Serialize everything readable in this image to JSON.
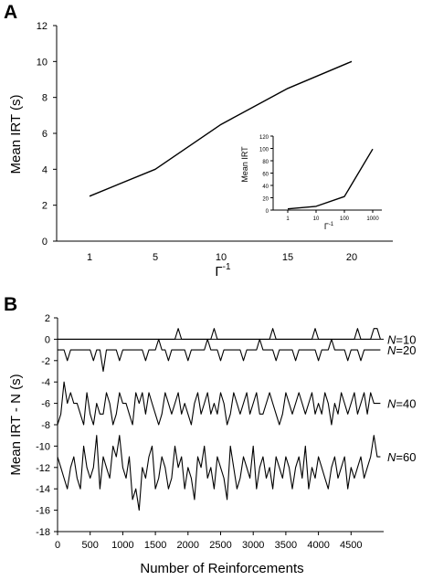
{
  "chart_data": [
    {
      "panel": "A",
      "type": "line",
      "categories": [
        "1",
        "5",
        "10",
        "15",
        "20"
      ],
      "values": [
        2.5,
        4.0,
        6.5,
        8.5,
        10.0
      ],
      "xlabel": "Γ -1",
      "ylabel": "Mean IRT (s)",
      "ylim": [
        0,
        12
      ],
      "yticks": [
        0,
        2,
        4,
        6,
        8,
        10,
        12
      ],
      "grid": false,
      "inset": {
        "type": "line",
        "x_scale": "log",
        "x": [
          1,
          10,
          100,
          1000
        ],
        "values": [
          2,
          6,
          22,
          99
        ],
        "xticks": [
          "1",
          "10",
          "100",
          "1000"
        ],
        "xlabel": "Γ -1",
        "ylabel": "Mean IRT",
        "ylim": [
          0,
          120
        ],
        "yticks": [
          0,
          20,
          40,
          60,
          80,
          100,
          120
        ]
      }
    },
    {
      "panel": "B",
      "type": "line",
      "xlabel": "Number of Reinforcements",
      "ylabel": "Mean IRT - N (s)",
      "xlim": [
        0,
        5000
      ],
      "xticks": [
        0,
        500,
        1000,
        1500,
        2000,
        2500,
        3000,
        3500,
        4000,
        4500
      ],
      "ylim": [
        -18,
        2
      ],
      "yticks": [
        2,
        0,
        -2,
        -4,
        -6,
        -8,
        -10,
        -12,
        -14,
        -16,
        -18
      ],
      "reference_line": 0,
      "grid": false,
      "x_step": 50,
      "series": [
        {
          "name": "N=10",
          "label_prefix": "N",
          "label_value": "=10",
          "values": [
            0,
            0,
            0,
            0,
            0,
            0,
            0,
            0,
            0,
            0,
            0,
            0,
            0,
            0,
            0,
            0,
            0,
            0,
            0,
            0,
            0,
            0,
            0,
            0,
            0,
            0,
            0,
            0,
            0,
            0,
            0,
            0,
            0,
            0,
            0,
            0,
            0,
            1,
            0,
            0,
            0,
            0,
            0,
            0,
            0,
            0,
            0,
            0,
            1,
            0,
            0,
            0,
            0,
            0,
            0,
            0,
            0,
            0,
            0,
            0,
            0,
            0,
            0,
            0,
            0,
            0,
            1,
            0,
            0,
            0,
            0,
            0,
            0,
            0,
            0,
            0,
            0,
            0,
            0,
            1,
            0,
            0,
            0,
            0,
            0,
            0,
            0,
            0,
            0,
            0,
            0,
            0,
            1,
            0,
            0,
            0,
            0,
            1,
            1,
            0
          ]
        },
        {
          "name": "N=20",
          "label_prefix": "N",
          "label_value": "=20",
          "values": [
            -1,
            -1,
            -1,
            -2,
            -1,
            -1,
            -1,
            -1,
            -1,
            -1,
            -1,
            -2,
            -1,
            -1,
            -3,
            -1,
            -1,
            -1,
            -1,
            -2,
            -1,
            -1,
            -1,
            -1,
            -1,
            -1,
            -1,
            -2,
            -1,
            -1,
            -1,
            0,
            -1,
            -1,
            -2,
            -1,
            -1,
            -1,
            -1,
            -1,
            -2,
            -1,
            -1,
            -1,
            -1,
            -1,
            0,
            -1,
            -1,
            -1,
            -2,
            -1,
            -1,
            -1,
            -1,
            -1,
            -1,
            -2,
            -1,
            -1,
            -1,
            -1,
            0,
            -1,
            -1,
            -1,
            -1,
            -2,
            -1,
            -1,
            -1,
            -1,
            -1,
            -2,
            -1,
            -1,
            -1,
            -1,
            -1,
            -1,
            -2,
            -1,
            -1,
            -1,
            0,
            -1,
            -1,
            -1,
            -1,
            -2,
            -1,
            -1,
            -1,
            -2,
            -1,
            -1,
            -1,
            -1,
            -1,
            -1
          ]
        },
        {
          "name": "N=40",
          "label_prefix": "N",
          "label_value": "=40",
          "values": [
            -8,
            -7,
            -4,
            -6,
            -5,
            -6,
            -6,
            -7,
            -8,
            -5,
            -7,
            -8,
            -6,
            -7,
            -7,
            -5,
            -6,
            -8,
            -7,
            -5,
            -6,
            -6,
            -7,
            -8,
            -5,
            -6,
            -5,
            -7,
            -5,
            -6,
            -7,
            -8,
            -7,
            -5,
            -6,
            -7,
            -6,
            -5,
            -7,
            -6,
            -7,
            -8,
            -6,
            -5,
            -7,
            -6,
            -5,
            -7,
            -6,
            -7,
            -5,
            -6,
            -8,
            -7,
            -5,
            -6,
            -7,
            -6,
            -5,
            -7,
            -6,
            -5,
            -7,
            -7,
            -6,
            -5,
            -6,
            -7,
            -8,
            -7,
            -5,
            -6,
            -7,
            -6,
            -5,
            -6,
            -7,
            -6,
            -5,
            -7,
            -6,
            -7,
            -5,
            -6,
            -8,
            -6,
            -7,
            -5,
            -6,
            -7,
            -6,
            -5,
            -7,
            -6,
            -5,
            -7,
            -5,
            -6,
            -6,
            -6
          ]
        },
        {
          "name": "N=60",
          "label_prefix": "N",
          "label_value": "=60",
          "values": [
            -11,
            -12,
            -13,
            -14,
            -12,
            -11,
            -13,
            -14,
            -10,
            -12,
            -13,
            -12,
            -9,
            -14,
            -11,
            -12,
            -13,
            -10,
            -11,
            -9,
            -12,
            -13,
            -11,
            -15,
            -14,
            -16,
            -12,
            -13,
            -11,
            -10,
            -14,
            -13,
            -11,
            -12,
            -14,
            -13,
            -10,
            -12,
            -11,
            -14,
            -12,
            -13,
            -15,
            -11,
            -12,
            -10,
            -13,
            -12,
            -14,
            -11,
            -12,
            -13,
            -15,
            -10,
            -12,
            -14,
            -13,
            -11,
            -12,
            -13,
            -10,
            -14,
            -12,
            -11,
            -13,
            -12,
            -14,
            -11,
            -12,
            -13,
            -11,
            -12,
            -14,
            -12,
            -11,
            -13,
            -10,
            -14,
            -12,
            -13,
            -11,
            -12,
            -13,
            -14,
            -12,
            -11,
            -13,
            -12,
            -11,
            -14,
            -12,
            -13,
            -12,
            -11,
            -13,
            -12,
            -11,
            -9,
            -11,
            -11
          ]
        }
      ]
    }
  ]
}
